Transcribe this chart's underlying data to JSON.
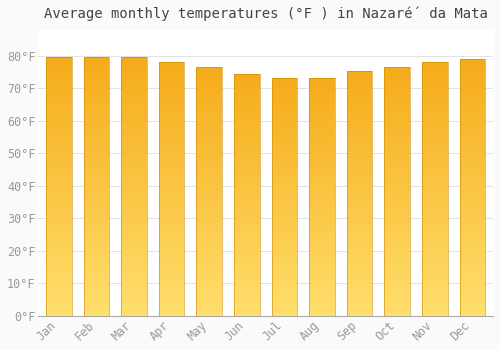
{
  "title": "Average monthly temperatures (°F ) in Nazaré́ da Mata",
  "months": [
    "Jan",
    "Feb",
    "Mar",
    "Apr",
    "May",
    "Jun",
    "Jul",
    "Aug",
    "Sep",
    "Oct",
    "Nov",
    "Dec"
  ],
  "values": [
    79.5,
    79.5,
    79.5,
    78.0,
    76.5,
    74.3,
    73.2,
    73.2,
    75.2,
    76.5,
    78.0,
    79.0
  ],
  "bar_color_top": "#F5A800",
  "bar_color_bottom": "#FFD966",
  "ylim": [
    0,
    88
  ],
  "yticks": [
    0,
    10,
    20,
    30,
    40,
    50,
    60,
    70,
    80
  ],
  "ytick_labels": [
    "0°F",
    "10°F",
    "20°F",
    "30°F",
    "40°F",
    "50°F",
    "60°F",
    "70°F",
    "80°F"
  ],
  "background_color": "#FAFAFA",
  "plot_bg_color": "#FFFFFF",
  "grid_color": "#DDDDDD",
  "title_fontsize": 10,
  "tick_fontsize": 8.5,
  "tick_color": "#999999",
  "spine_color": "#AAAAAA"
}
